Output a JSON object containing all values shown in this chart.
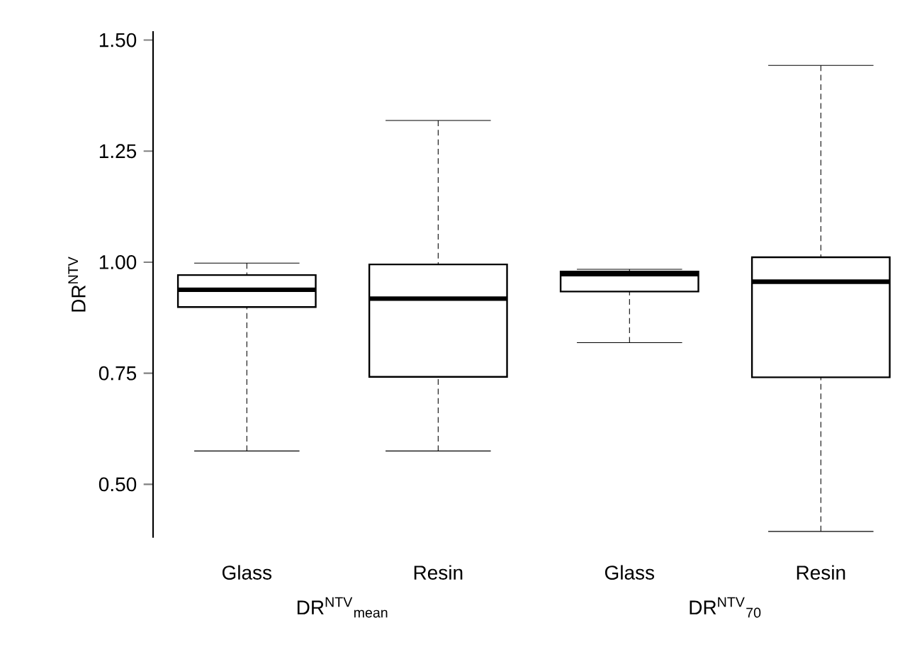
{
  "chart_data": {
    "type": "box",
    "ylabel": "DR$^{NTV}$",
    "categories": [
      "Glass",
      "Resin",
      "Glass",
      "Resin"
    ],
    "boxes": [
      {
        "low": 0.575,
        "q1": 0.899,
        "median": 0.938,
        "q3": 0.971,
        "high": 0.998
      },
      {
        "low": 0.575,
        "q1": 0.742,
        "median": 0.918,
        "q3": 0.995,
        "high": 1.319
      },
      {
        "low": 0.819,
        "q1": 0.934,
        "median": 0.973,
        "q3": 0.979,
        "high": 0.984
      },
      {
        "low": 0.394,
        "q1": 0.741,
        "median": 0.956,
        "q3": 1.011,
        "high": 1.443
      }
    ],
    "color": "#000000",
    "annotations": [
      "DR$^{NTV}$$_{mean}$",
      "DR$^{NTV}$$_{70}$"
    ],
    "ylim": [
      0.38,
      1.52
    ],
    "yticks": [
      {
        "value": 0.5,
        "label": "0.50"
      },
      {
        "value": 0.75,
        "label": "0.75"
      },
      {
        "value": 1.0,
        "label": "1.00"
      },
      {
        "value": 1.25,
        "label": "1.25"
      },
      {
        "value": 1.5,
        "label": "1.50"
      }
    ]
  }
}
